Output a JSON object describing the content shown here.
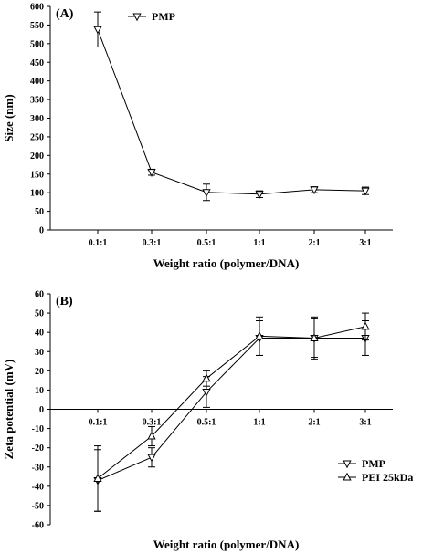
{
  "chart_data": [
    {
      "type": "line",
      "panel_label": "(A)",
      "categories": [
        "0.1:1",
        "0.3:1",
        "0.5:1",
        "1:1",
        "2:1",
        "3:1"
      ],
      "xlabel": "Weight ratio (polymer/DNA)",
      "ylabel": "Size (nm)",
      "ylim": [
        0,
        600
      ],
      "yticks": [
        "0",
        "50",
        "100",
        "150",
        "200",
        "250",
        "300",
        "350",
        "400",
        "450",
        "500",
        "550",
        "600"
      ],
      "legend_position": "top-left",
      "grid": false,
      "series": [
        {
          "name": "PMP",
          "marker": "triangle-down",
          "values": [
            538,
            155,
            101,
            96,
            108,
            105
          ],
          "errors": [
            47,
            8,
            22,
            9,
            8,
            10
          ]
        }
      ]
    },
    {
      "type": "line",
      "panel_label": "(B)",
      "categories": [
        "0.1:1",
        "0.3:1",
        "0.5:1",
        "1:1",
        "2:1",
        "3:1"
      ],
      "xlabel": "Weight ratio (polymer/DNA)",
      "ylabel": "Zeta potential (mV)",
      "ylim": [
        -60,
        60
      ],
      "yticks": [
        "60",
        "50",
        "40",
        "30",
        "20",
        "10",
        "0",
        "-10",
        "-20",
        "-30",
        "-40",
        "-50",
        "-60"
      ],
      "legend_position": "bottom-right",
      "grid": false,
      "series": [
        {
          "name": "PMP",
          "marker": "triangle-down",
          "values": [
            -37,
            -25,
            9,
            37,
            37,
            37
          ],
          "errors": [
            16,
            5,
            8,
            9,
            11,
            9
          ]
        },
        {
          "name": "PEI 25kDa",
          "marker": "triangle-up",
          "values": [
            -36,
            -14,
            16,
            38,
            37,
            43
          ],
          "errors": [
            17,
            5,
            4,
            10,
            10,
            7
          ]
        }
      ]
    }
  ]
}
